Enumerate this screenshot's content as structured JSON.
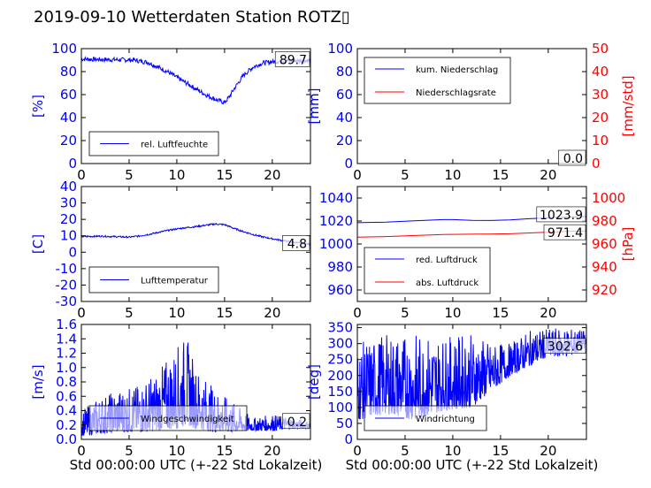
{
  "page": {
    "title": "2019-09-10 Wetterdaten Station ROTZ▯"
  },
  "colors": {
    "primary": "#0000ff",
    "secondary": "#ff0000"
  },
  "chart_data": [
    {
      "type": "line",
      "ylabel": "[%]",
      "xlim": [
        0,
        24
      ],
      "ylim": [
        0,
        100
      ],
      "x_ticks": [
        0,
        5,
        10,
        15,
        20
      ],
      "y_ticks": [
        0,
        20,
        40,
        60,
        80,
        100
      ],
      "series": [
        {
          "name": "rel. Luftfeuchte",
          "color": "#0000ff",
          "noise": 2.0,
          "points": [
            [
              0,
              91
            ],
            [
              2,
              90.5
            ],
            [
              4,
              90.3
            ],
            [
              5.5,
              90
            ],
            [
              7,
              88
            ],
            [
              8,
              84
            ],
            [
              9,
              80
            ],
            [
              10,
              75
            ],
            [
              11,
              70
            ],
            [
              12,
              65
            ],
            [
              13,
              60
            ],
            [
              14,
              56
            ],
            [
              15,
              53
            ],
            [
              15.5,
              58
            ],
            [
              16,
              65
            ],
            [
              17,
              77
            ],
            [
              18,
              84
            ],
            [
              19,
              87.5
            ],
            [
              20,
              88.5
            ],
            [
              22,
              89.5
            ],
            [
              24,
              89.7
            ]
          ]
        }
      ],
      "last_value": "89.7",
      "legend_position": "lower-center"
    },
    {
      "type": "line",
      "ylabel": "[mm]",
      "y2label": "[mm/std]",
      "xlim": [
        0,
        24
      ],
      "ylim": [
        0,
        100
      ],
      "y2lim": [
        0,
        50
      ],
      "x_ticks": [
        0,
        5,
        10,
        15,
        20
      ],
      "y_ticks": [
        0,
        20,
        40,
        60,
        80,
        100
      ],
      "y2_ticks": [
        0,
        10,
        20,
        30,
        40,
        50
      ],
      "series": [
        {
          "name": "kum. Niederschlag",
          "color": "#0000ff",
          "points": [
            [
              0,
              0
            ],
            [
              24,
              0
            ]
          ]
        },
        {
          "name": "Niederschlagsrate",
          "color": "#ff0000",
          "axis": "right",
          "points": [
            [
              0,
              0
            ],
            [
              24,
              0
            ]
          ]
        }
      ],
      "last_value": "0.0",
      "last_value_2": "0",
      "legend_position": "upper-left"
    },
    {
      "type": "line",
      "ylabel": "[C]",
      "xlim": [
        0,
        24
      ],
      "ylim": [
        -30,
        40
      ],
      "x_ticks": [
        0,
        5,
        10,
        15,
        20
      ],
      "y_ticks": [
        -30,
        -20,
        -10,
        0,
        10,
        20,
        30,
        40
      ],
      "series": [
        {
          "name": "Lufttemperatur",
          "color": "#0000ff",
          "noise": 0.5,
          "points": [
            [
              0,
              9.5
            ],
            [
              2,
              9.8
            ],
            [
              4,
              9.4
            ],
            [
              5,
              9.2
            ],
            [
              6,
              9.8
            ],
            [
              7,
              10.8
            ],
            [
              8,
              12
            ],
            [
              9,
              13.2
            ],
            [
              10,
              14.2
            ],
            [
              11,
              15
            ],
            [
              12,
              15.6
            ],
            [
              13,
              16.4
            ],
            [
              14,
              17.2
            ],
            [
              15,
              16.8
            ],
            [
              16,
              14.5
            ],
            [
              17,
              12.5
            ],
            [
              18,
              10.8
            ],
            [
              19,
              9.3
            ],
            [
              20,
              8.2
            ],
            [
              21,
              7.2
            ],
            [
              22,
              6.3
            ],
            [
              23,
              5.4
            ],
            [
              24,
              4.8
            ]
          ]
        }
      ],
      "last_value": "4.8",
      "legend_position": "lower-center"
    },
    {
      "type": "line",
      "ylabel": "",
      "y2label": "[hPa]",
      "xlim": [
        0,
        24
      ],
      "ylim": [
        950,
        1050
      ],
      "y2lim": [
        910,
        1010
      ],
      "x_ticks": [
        0,
        5,
        10,
        15,
        20
      ],
      "y_ticks": [
        960,
        980,
        1000,
        1020,
        1040
      ],
      "y2_ticks": [
        920,
        940,
        960,
        980,
        1000
      ],
      "series": [
        {
          "name": "red. Luftdruck",
          "color": "#0000ff",
          "points": [
            [
              0,
              1018.5
            ],
            [
              3,
              1019
            ],
            [
              6,
              1020.2
            ],
            [
              9,
              1021.2
            ],
            [
              10,
              1021.2
            ],
            [
              12,
              1020.6
            ],
            [
              14,
              1020.5
            ],
            [
              16,
              1021
            ],
            [
              18,
              1022
            ],
            [
              20,
              1022.8
            ],
            [
              22,
              1023.4
            ],
            [
              24,
              1023.9
            ]
          ]
        },
        {
          "name": "abs. Luftdruck",
          "color": "#ff0000",
          "axis": "right",
          "points": [
            [
              0,
              966
            ],
            [
              3,
              966.5
            ],
            [
              6,
              967.4
            ],
            [
              9,
              968.2
            ],
            [
              10,
              968.4
            ],
            [
              12,
              968.5
            ],
            [
              14,
              968.6
            ],
            [
              16,
              968.9
            ],
            [
              18,
              969.6
            ],
            [
              20,
              970.3
            ],
            [
              22,
              970.9
            ],
            [
              24,
              971.4
            ]
          ]
        }
      ],
      "last_value": "1023.9",
      "last_value_2": "971.4",
      "legend_position": "lower-left"
    },
    {
      "type": "line",
      "ylabel": "[m/s]",
      "xlabel": "Std 00:00:00 UTC (+-22 Std Lokalzeit)",
      "xlim": [
        0,
        24
      ],
      "ylim": [
        0,
        1.6
      ],
      "x_ticks": [
        0,
        5,
        10,
        15,
        20
      ],
      "y_ticks": [
        0.0,
        0.2,
        0.4,
        0.6,
        0.8,
        1.0,
        1.2,
        1.4,
        1.6
      ],
      "series": [
        {
          "name": "Windgeschwindigkeit",
          "color": "#0000ff",
          "envelope": [
            [
              0,
              0.05,
              0.4
            ],
            [
              2,
              0.08,
              0.6
            ],
            [
              4,
              0.1,
              0.7
            ],
            [
              6,
              0.1,
              0.75
            ],
            [
              8,
              0.12,
              0.95
            ],
            [
              10,
              0.15,
              1.3
            ],
            [
              11,
              0.2,
              1.45
            ],
            [
              12,
              0.15,
              1.0
            ],
            [
              14,
              0.1,
              0.7
            ],
            [
              16,
              0.1,
              0.5
            ],
            [
              18,
              0.12,
              0.3
            ],
            [
              20,
              0.12,
              0.35
            ],
            [
              22,
              0.15,
              0.3
            ],
            [
              24,
              0.15,
              0.25
            ]
          ]
        }
      ],
      "last_value": "0.2",
      "legend_position": "lower-center"
    },
    {
      "type": "line",
      "ylabel": "[deg]",
      "xlabel": "Std 00:00:00 UTC (+-22 Std Lokalzeit)",
      "xlim": [
        0,
        24
      ],
      "ylim": [
        0,
        360
      ],
      "x_ticks": [
        0,
        5,
        10,
        15,
        20
      ],
      "y_ticks": [
        0,
        50,
        100,
        150,
        200,
        250,
        300,
        350
      ],
      "series": [
        {
          "name": "Windrichtung",
          "color": "#0000ff",
          "envelope": [
            [
              0,
              60,
              300
            ],
            [
              3,
              80,
              330
            ],
            [
              6,
              60,
              330
            ],
            [
              9,
              90,
              320
            ],
            [
              12,
              100,
              330
            ],
            [
              14,
              150,
              300
            ],
            [
              16,
              200,
              300
            ],
            [
              18,
              230,
              340
            ],
            [
              20,
              260,
              345
            ],
            [
              22,
              260,
              350
            ],
            [
              24,
              280,
              340
            ]
          ]
        }
      ],
      "last_value": "302.6",
      "legend_position": "lower-left"
    }
  ]
}
